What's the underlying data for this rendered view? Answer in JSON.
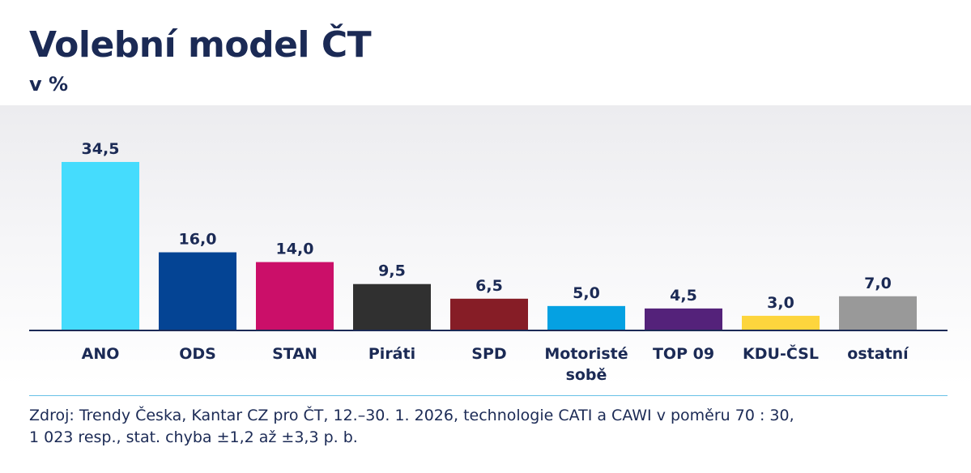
{
  "title": "Volební model ČT",
  "subtitle": "v %",
  "chart_data": {
    "type": "bar",
    "title": "Volební model ČT",
    "subtitle": "v %",
    "xlabel": "",
    "ylabel": "",
    "ylim": [
      0,
      40
    ],
    "grid": false,
    "categories": [
      "ANO",
      "ODS",
      "STAN",
      "Piráti",
      "SPD",
      "Motoristé sobě",
      "TOP 09",
      "KDU-ČSL",
      "ostatní"
    ],
    "category_lines": [
      [
        "ANO"
      ],
      [
        "ODS"
      ],
      [
        "STAN"
      ],
      [
        "Piráti"
      ],
      [
        "SPD"
      ],
      [
        "Motoristé",
        "sobě"
      ],
      [
        "TOP 09"
      ],
      [
        "KDU-ČSL"
      ],
      [
        "ostatní"
      ]
    ],
    "values": [
      34.5,
      16.0,
      14.0,
      9.5,
      6.5,
      5.0,
      4.5,
      3.0,
      7.0
    ],
    "value_labels": [
      "34,5",
      "16,0",
      "14,0",
      "9,5",
      "6,5",
      "5,0",
      "4,5",
      "3,0",
      "7,0"
    ],
    "colors": [
      "#45dcfd",
      "#044494",
      "#cb0f69",
      "#303030",
      "#861d26",
      "#05a1e2",
      "#54227a",
      "#fdd53d",
      "#999999"
    ]
  },
  "source": {
    "line1": "Zdroj: Trendy Česka, Kantar CZ pro ČT, 12.–30. 1. 2026, technologie CATI a CAWI v poměru 70 : 30,",
    "line2": "1 023 resp., stat. chyba ±1,2 až ±3,3 p. b."
  },
  "colors": {
    "text": "#1b2a55",
    "axis": "#1b2a55",
    "divider": "#67c1e6"
  }
}
